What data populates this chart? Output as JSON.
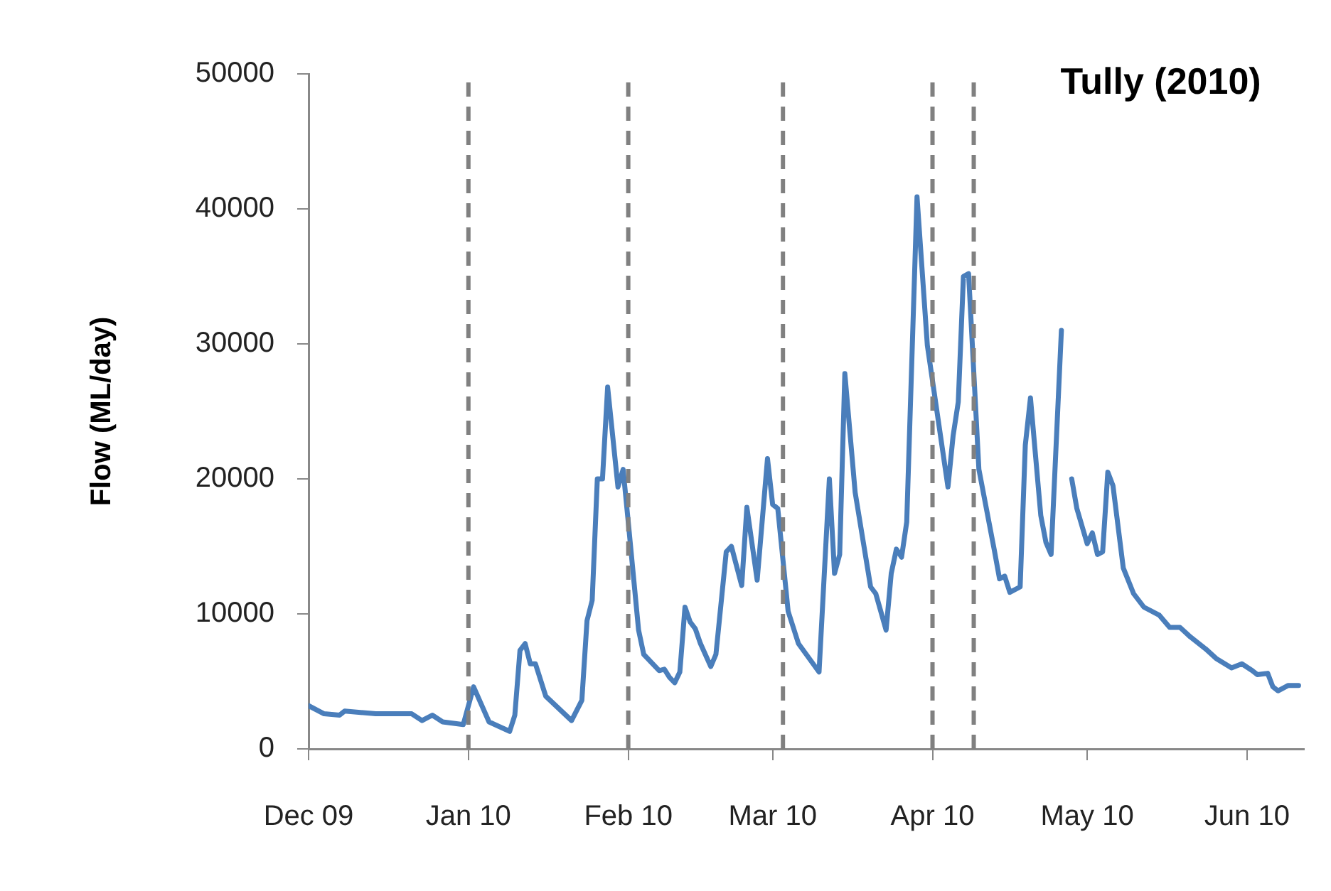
{
  "chart_data": {
    "type": "line",
    "title": "Tully (2010)",
    "ylabel": "Flow (ML/day)",
    "x": [
      "2009-12-01",
      "2009-12-04",
      "2009-12-07",
      "2009-12-08",
      "2009-12-14",
      "2009-12-21",
      "2009-12-23",
      "2009-12-25",
      "2009-12-27",
      "2009-12-31",
      "2010-01-02",
      "2010-01-05",
      "2010-01-09",
      "2010-01-10",
      "2010-01-11",
      "2010-01-12",
      "2010-01-13",
      "2010-01-14",
      "2010-01-16",
      "2010-01-21",
      "2010-01-23",
      "2010-01-24",
      "2010-01-25",
      "2010-01-26",
      "2010-01-27",
      "2010-01-28",
      "2010-01-30",
      "2010-01-31",
      "2010-02-01",
      "2010-02-03",
      "2010-02-04",
      "2010-02-07",
      "2010-02-08",
      "2010-02-09",
      "2010-02-10",
      "2010-02-11",
      "2010-02-12",
      "2010-02-13",
      "2010-02-14",
      "2010-02-15",
      "2010-02-17",
      "2010-02-18",
      "2010-02-20",
      "2010-02-21",
      "2010-02-23",
      "2010-02-24",
      "2010-02-26",
      "2010-02-28",
      "2010-03-01",
      "2010-03-02",
      "2010-03-04",
      "2010-03-06",
      "2010-03-10",
      "2010-03-12",
      "2010-03-13",
      "2010-03-14",
      "2010-03-15",
      "2010-03-17",
      "2010-03-20",
      "2010-03-21",
      "2010-03-23",
      "2010-03-24",
      "2010-03-25",
      "2010-03-26",
      "2010-03-27",
      "2010-03-29",
      "2010-03-31",
      "2010-04-04",
      "2010-04-05",
      "2010-04-06",
      "2010-04-07",
      "2010-04-08",
      "2010-04-10",
      "2010-04-13",
      "2010-04-14",
      "2010-04-15",
      "2010-04-16",
      "2010-04-18",
      "2010-04-19",
      "2010-04-20",
      "2010-04-22",
      "2010-04-23",
      "2010-04-24",
      "2010-04-26",
      "2010-04-27",
      "2010-04-28",
      "2010-04-29",
      "2010-05-01",
      "2010-05-02",
      "2010-05-03",
      "2010-05-04",
      "2010-05-05",
      "2010-05-06",
      "2010-05-08",
      "2010-05-10",
      "2010-05-12",
      "2010-05-15",
      "2010-05-17",
      "2010-05-19",
      "2010-05-21",
      "2010-05-24",
      "2010-05-26",
      "2010-05-29",
      "2010-05-31",
      "2010-06-02",
      "2010-06-03",
      "2010-06-05",
      "2010-06-06",
      "2010-06-07",
      "2010-06-09",
      "2010-06-11"
    ],
    "series": [
      {
        "color": "#4a7ebb",
        "values": [
          3200,
          2600,
          2500,
          2800,
          2600,
          2600,
          2100,
          2500,
          2000,
          1800,
          4600,
          2000,
          1300,
          2500,
          7300,
          7800,
          6300,
          6300,
          3900,
          2100,
          3600,
          9500,
          11000,
          20000,
          20000,
          26800,
          19400,
          20700,
          16800,
          8800,
          7000,
          5800,
          5900,
          5300,
          4900,
          5700,
          10500,
          9400,
          8900,
          7800,
          6100,
          7000,
          14600,
          15000,
          12100,
          17900,
          12500,
          21500,
          18100,
          17800,
          10200,
          7800,
          5700,
          20000,
          13000,
          14400,
          27800,
          19000,
          12000,
          11500,
          8800,
          13000,
          14800,
          14200,
          16800,
          40900,
          29900,
          19400,
          23200,
          25700,
          35000,
          35200,
          20700,
          14700,
          12600,
          12800,
          11600,
          12000,
          22500,
          26000,
          17300,
          15300,
          14400,
          31000,
          null,
          20000,
          17800,
          15200,
          16000,
          14400,
          14600,
          20500,
          19500,
          13400,
          11500,
          10500,
          9900,
          9000,
          9000,
          8300,
          7400,
          6700,
          6000,
          6300,
          5800,
          5500,
          5600,
          4600,
          4300,
          4700,
          4700
        ]
      }
    ],
    "xlim": [
      "2009-12-01",
      "2010-06-12"
    ],
    "xticks": [
      {
        "value": "2009-12-01",
        "label": "Dec 09"
      },
      {
        "value": "2010-01-01",
        "label": "Jan 10"
      },
      {
        "value": "2010-02-01",
        "label": "Feb 10"
      },
      {
        "value": "2010-03-01",
        "label": "Mar 10"
      },
      {
        "value": "2010-04-01",
        "label": "Apr 10"
      },
      {
        "value": "2010-05-01",
        "label": "May 10"
      },
      {
        "value": "2010-06-01",
        "label": "Jun 10"
      }
    ],
    "ylim": [
      0,
      50000
    ],
    "yticks": [
      0,
      10000,
      20000,
      30000,
      40000,
      50000
    ],
    "ref_lines": [
      {
        "axis": "x",
        "value": "2010-01-01",
        "color": "#808080",
        "line_style": "dashed"
      },
      {
        "axis": "x",
        "value": "2010-02-01",
        "color": "#808080",
        "line_style": "dashed"
      },
      {
        "axis": "x",
        "value": "2010-03-03",
        "color": "#808080",
        "line_style": "dashed"
      },
      {
        "axis": "x",
        "value": "2010-04-01",
        "color": "#808080",
        "line_style": "dashed"
      },
      {
        "axis": "x",
        "value": "2010-04-09",
        "color": "#808080",
        "line_style": "dashed"
      }
    ],
    "grid": false,
    "legend": false,
    "marker": "none",
    "line_style": "solid"
  }
}
